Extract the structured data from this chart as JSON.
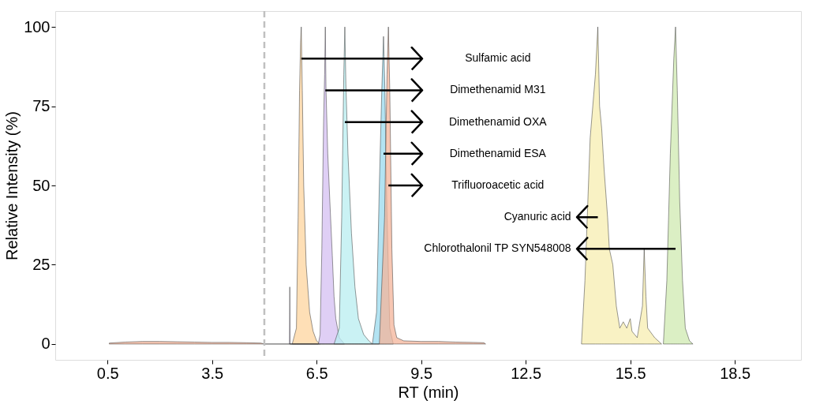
{
  "chart_data": {
    "type": "area",
    "xlabel": "RT (min)",
    "ylabel": "Relative Intensity (%)",
    "xlim": [
      -1.0,
      20.4
    ],
    "ylim": [
      -5,
      105
    ],
    "xticks": [
      0.5,
      3.5,
      6.5,
      9.5,
      12.5,
      15.5,
      18.5
    ],
    "yticks": [
      0,
      25,
      50,
      75,
      100
    ],
    "grid": false,
    "series": [
      {
        "color": "#fdd49e",
        "x": [
          5.8,
          5.92,
          5.97,
          6.01,
          6.04,
          6.06,
          6.09,
          6.13,
          6.2,
          6.3,
          6.4,
          6.5,
          6.6
        ],
        "values": [
          0,
          5,
          40,
          80,
          95,
          100,
          80,
          50,
          25,
          10,
          4,
          1,
          0
        ]
      },
      {
        "color": "#d4bff2",
        "x": [
          5.72,
          5.73,
          5.74,
          6.55,
          6.6,
          6.65,
          6.7,
          6.73,
          6.75,
          6.77,
          6.82,
          6.88,
          6.95,
          7.0,
          7.05,
          7.15,
          7.3
        ],
        "values": [
          0,
          18,
          0,
          0,
          3,
          30,
          70,
          85,
          100,
          80,
          60,
          45,
          28,
          15,
          8,
          2,
          0
        ]
      },
      {
        "color": "#b8eef0",
        "x": [
          7.0,
          7.15,
          7.22,
          7.28,
          7.31,
          7.34,
          7.4,
          7.5,
          7.6,
          7.7,
          7.85,
          8.0,
          8.1
        ],
        "values": [
          0,
          5,
          40,
          85,
          100,
          82,
          60,
          35,
          18,
          8,
          3,
          1,
          0
        ]
      },
      {
        "color": "#9ad9ee",
        "x": [
          8.1,
          8.22,
          8.3,
          8.37,
          8.42,
          8.46,
          8.52,
          8.6,
          8.7
        ],
        "values": [
          0,
          10,
          50,
          80,
          97,
          80,
          40,
          5,
          0
        ]
      },
      {
        "color": "#f4b49a",
        "x": [
          0.55,
          1.0,
          1.5,
          2.0,
          2.5,
          3.0,
          3.5,
          4.0,
          4.5,
          4.9,
          5.0,
          8.3,
          8.45,
          8.52,
          8.56,
          8.6,
          8.66,
          8.72,
          8.8,
          9.0,
          9.5,
          10.0,
          10.5,
          11.0,
          11.3,
          11.35
        ],
        "values": [
          0.3,
          0.6,
          0.8,
          0.8,
          0.7,
          0.6,
          0.5,
          0.5,
          0.4,
          0.3,
          0,
          0,
          40,
          85,
          100,
          80,
          30,
          6,
          2,
          1,
          0.8,
          0.8,
          0.6,
          0.5,
          0.4,
          0
        ]
      },
      {
        "color": "#f7eeb0",
        "x": [
          14.1,
          14.2,
          14.35,
          14.5,
          14.57,
          14.62,
          14.68,
          14.75,
          14.85,
          14.9,
          15.0,
          15.1,
          15.2,
          15.3,
          15.4,
          15.5,
          15.55,
          15.7,
          15.85,
          15.9,
          15.95,
          16.0,
          16.2,
          16.4
        ],
        "values": [
          0,
          20,
          65,
          85,
          100,
          75,
          68,
          55,
          40,
          30,
          25,
          12,
          5,
          7,
          5,
          8,
          4,
          2,
          12,
          30,
          15,
          5,
          2,
          0
        ]
      },
      {
        "color": "#cfeab0",
        "x": [
          16.45,
          16.55,
          16.65,
          16.75,
          16.8,
          16.85,
          16.92,
          17.0,
          17.08,
          17.2,
          17.3
        ],
        "values": [
          0,
          20,
          60,
          90,
          100,
          80,
          45,
          20,
          5,
          1,
          0
        ]
      }
    ],
    "ref_lines": [
      {
        "axis": "x",
        "value": 5.0,
        "color": "#c0c0c0",
        "line_style": "dashed"
      }
    ],
    "annotations": [
      "Sulfamic acid",
      "Dimethenamid M31",
      "Dimethenamid OXA",
      "Dimethenamid ESA",
      "Trifluoroacetic acid",
      "Cyanuric acid",
      "Chlorothalonil TP SYN548008"
    ]
  }
}
